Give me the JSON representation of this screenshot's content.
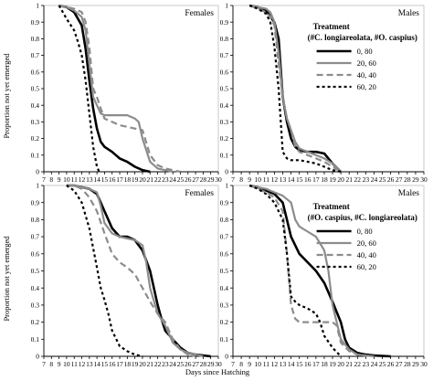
{
  "figure": {
    "ylabel": "Proportion not yet emerged",
    "xlabel": "Days since Hatching"
  },
  "series_styles": {
    "0, 80": {
      "color": "#000000",
      "width": 2.6,
      "dash": ""
    },
    "20, 60": {
      "color": "#8c8c8c",
      "width": 2.2,
      "dash": ""
    },
    "40, 40": {
      "color": "#8c8c8c",
      "width": 2.2,
      "dash": "7,4"
    },
    "60, 20": {
      "color": "#000000",
      "width": 2.2,
      "dash": "3,3"
    }
  },
  "chart_data": [
    {
      "type": "line",
      "panel": "top-left",
      "title": "Females",
      "xlim": [
        7,
        30
      ],
      "ylim": [
        0,
        1
      ],
      "xticks": [
        7,
        8,
        9,
        10,
        11,
        12,
        13,
        14,
        15,
        16,
        17,
        18,
        19,
        20,
        21,
        22,
        23,
        24,
        25,
        26,
        27,
        28,
        29,
        30
      ],
      "yticks": [
        0,
        0.1,
        0.2,
        0.3,
        0.4,
        0.5,
        0.6,
        0.7,
        0.8,
        0.9,
        1
      ],
      "series": [
        {
          "name": "0, 80",
          "x": [
            9,
            10,
            11,
            12,
            12.5,
            13,
            13.5,
            14,
            14.5,
            15,
            16,
            17,
            18,
            19,
            20,
            21
          ],
          "y": [
            1,
            0.99,
            0.96,
            0.88,
            0.74,
            0.55,
            0.38,
            0.26,
            0.18,
            0.15,
            0.12,
            0.08,
            0.06,
            0.03,
            0.01,
            0
          ]
        },
        {
          "name": "20, 60",
          "x": [
            9,
            10,
            11,
            12,
            12.5,
            13,
            13.5,
            14,
            14.5,
            15,
            16,
            17,
            18,
            19,
            19.5,
            20,
            21,
            22,
            23,
            24
          ],
          "y": [
            1,
            0.99,
            0.97,
            0.93,
            0.85,
            0.65,
            0.45,
            0.4,
            0.35,
            0.34,
            0.34,
            0.34,
            0.34,
            0.32,
            0.3,
            0.2,
            0.06,
            0.02,
            0.01,
            0
          ]
        },
        {
          "name": "40, 40",
          "x": [
            9,
            10,
            11,
            12,
            12.5,
            13,
            13.5,
            14,
            14.5,
            15,
            16,
            17,
            18,
            19,
            20,
            21,
            22,
            23,
            24,
            25
          ],
          "y": [
            1,
            0.99,
            0.98,
            0.96,
            0.9,
            0.75,
            0.5,
            0.45,
            0.38,
            0.32,
            0.3,
            0.28,
            0.27,
            0.26,
            0.25,
            0.1,
            0.04,
            0.02,
            0.01,
            0
          ]
        },
        {
          "name": "60, 20",
          "x": [
            9,
            10,
            11,
            11.5,
            12,
            12.5,
            13,
            13.5,
            14,
            14.3
          ],
          "y": [
            1,
            0.92,
            0.85,
            0.78,
            0.7,
            0.55,
            0.35,
            0.15,
            0.03,
            0
          ]
        }
      ]
    },
    {
      "type": "line",
      "panel": "top-right",
      "title": "Males",
      "xlim": [
        7,
        30
      ],
      "ylim": [
        0,
        1
      ],
      "xticks": [
        7,
        8,
        9,
        10,
        11,
        12,
        13,
        14,
        15,
        16,
        17,
        18,
        19,
        20,
        21,
        22,
        23,
        24,
        25,
        26,
        27,
        28,
        29,
        30
      ],
      "yticks": [
        0,
        0.1,
        0.2,
        0.3,
        0.4,
        0.5,
        0.6,
        0.7,
        0.8,
        0.9,
        1
      ],
      "legend": {
        "title": "Treatment",
        "subtitle": "(#C. longiareolata, #O. caspius)",
        "placement": "top-right",
        "entries": [
          "0, 80",
          "20, 60",
          "40, 40",
          "60, 20"
        ]
      },
      "series": [
        {
          "name": "0, 80",
          "x": [
            9,
            10,
            11,
            12,
            12.5,
            13,
            13.5,
            14,
            14.5,
            15,
            16,
            17,
            18,
            19,
            20
          ],
          "y": [
            1,
            0.99,
            0.97,
            0.9,
            0.8,
            0.45,
            0.3,
            0.2,
            0.15,
            0.13,
            0.12,
            0.12,
            0.11,
            0.05,
            0
          ]
        },
        {
          "name": "20, 60",
          "x": [
            9,
            10,
            11,
            11.5,
            12,
            12.5,
            13,
            13.5,
            14,
            14.5,
            15,
            16,
            17,
            18,
            19,
            20
          ],
          "y": [
            1,
            0.99,
            0.98,
            0.96,
            0.9,
            0.72,
            0.45,
            0.32,
            0.25,
            0.18,
            0.14,
            0.12,
            0.1,
            0.08,
            0.05,
            0
          ]
        },
        {
          "name": "40, 40",
          "x": [
            9,
            10,
            11,
            11.5,
            12,
            12.5,
            13,
            13.5,
            14,
            14.5,
            15,
            16,
            17,
            18,
            19,
            20
          ],
          "y": [
            1,
            0.98,
            0.96,
            0.93,
            0.88,
            0.65,
            0.45,
            0.32,
            0.25,
            0.15,
            0.12,
            0.1,
            0.08,
            0.06,
            0.03,
            0
          ]
        },
        {
          "name": "60, 20",
          "x": [
            9,
            10,
            11,
            11.5,
            12,
            12.5,
            13,
            13.5,
            14,
            14.5,
            15,
            16,
            17,
            18,
            19,
            20
          ],
          "y": [
            1,
            0.98,
            0.95,
            0.9,
            0.75,
            0.5,
            0.12,
            0.08,
            0.07,
            0.07,
            0.07,
            0.06,
            0.05,
            0.03,
            0.01,
            0
          ]
        }
      ]
    },
    {
      "type": "line",
      "panel": "bottom-left",
      "title": "Females",
      "xlim": [
        7,
        30
      ],
      "ylim": [
        0,
        1
      ],
      "xticks": [
        7,
        8,
        9,
        10,
        11,
        12,
        13,
        14,
        15,
        16,
        17,
        18,
        19,
        20,
        21,
        22,
        23,
        24,
        25,
        26,
        27,
        28,
        29,
        30
      ],
      "yticks": [
        0,
        0.1,
        0.2,
        0.3,
        0.4,
        0.5,
        0.6,
        0.7,
        0.8,
        0.9,
        1
      ],
      "series": [
        {
          "name": "0, 80",
          "x": [
            10,
            11,
            12,
            13,
            14,
            15,
            16,
            17,
            18,
            19,
            20,
            21,
            22,
            22.5,
            23,
            24,
            25,
            26,
            27,
            28,
            29
          ],
          "y": [
            1,
            1,
            0.99,
            0.98,
            0.95,
            0.85,
            0.75,
            0.7,
            0.7,
            0.68,
            0.62,
            0.5,
            0.3,
            0.22,
            0.15,
            0.1,
            0.05,
            0.02,
            0.01,
            0.005,
            0
          ]
        },
        {
          "name": "20, 60",
          "x": [
            10,
            11,
            12,
            13,
            14,
            14.5,
            15,
            16,
            17,
            18,
            19,
            20,
            20.5,
            21,
            22,
            23,
            24,
            25,
            26,
            27,
            28
          ],
          "y": [
            1,
            1,
            0.99,
            0.98,
            0.96,
            0.88,
            0.78,
            0.72,
            0.7,
            0.69,
            0.68,
            0.65,
            0.55,
            0.4,
            0.25,
            0.18,
            0.08,
            0.04,
            0.02,
            0.01,
            0
          ]
        },
        {
          "name": "40, 40",
          "x": [
            10,
            11,
            12,
            13,
            14,
            15,
            16,
            17,
            18,
            19,
            20,
            21,
            22,
            23,
            24,
            25,
            26,
            27
          ],
          "y": [
            1,
            1,
            0.98,
            0.93,
            0.85,
            0.72,
            0.6,
            0.55,
            0.52,
            0.48,
            0.4,
            0.32,
            0.25,
            0.2,
            0.1,
            0.04,
            0.01,
            0
          ]
        },
        {
          "name": "60, 20",
          "x": [
            10,
            11,
            12,
            13,
            14,
            14.5,
            15,
            15.5,
            16,
            17,
            18,
            19,
            20
          ],
          "y": [
            1,
            0.97,
            0.9,
            0.75,
            0.52,
            0.4,
            0.33,
            0.25,
            0.15,
            0.06,
            0.03,
            0.01,
            0
          ]
        }
      ]
    },
    {
      "type": "line",
      "panel": "bottom-right",
      "title": "Males",
      "xlim": [
        7,
        30
      ],
      "ylim": [
        0,
        1
      ],
      "xticks": [
        7,
        8,
        9,
        10,
        11,
        12,
        13,
        14,
        15,
        16,
        17,
        18,
        19,
        20,
        21,
        22,
        23,
        24,
        25,
        26,
        27,
        28,
        29,
        30
      ],
      "yticks": [
        0,
        0.1,
        0.2,
        0.3,
        0.4,
        0.5,
        0.6,
        0.7,
        0.8,
        0.9,
        1
      ],
      "legend": {
        "title": "Treatment",
        "subtitle": "(#O. caspius, #C. longiareolata)",
        "placement": "top-right",
        "entries": [
          "0, 80",
          "20, 60",
          "40, 40",
          "60, 20"
        ]
      },
      "series": [
        {
          "name": "0, 80",
          "x": [
            9,
            10,
            11,
            12,
            13,
            13.5,
            14,
            15,
            16,
            17,
            18,
            19,
            20,
            20.5,
            21,
            22,
            23,
            24,
            25,
            26
          ],
          "y": [
            1,
            0.99,
            0.97,
            0.95,
            0.9,
            0.8,
            0.7,
            0.6,
            0.55,
            0.5,
            0.43,
            0.32,
            0.2,
            0.1,
            0.05,
            0.02,
            0.01,
            0.005,
            0.002,
            0
          ]
        },
        {
          "name": "20, 60",
          "x": [
            9,
            10,
            11,
            12,
            13,
            14,
            14.5,
            15,
            16,
            17,
            18,
            18.5,
            19,
            19.5,
            20,
            21,
            22,
            23,
            24
          ],
          "y": [
            1,
            0.99,
            0.98,
            0.96,
            0.94,
            0.9,
            0.8,
            0.76,
            0.73,
            0.7,
            0.62,
            0.5,
            0.3,
            0.2,
            0.1,
            0.04,
            0.01,
            0.005,
            0
          ]
        },
        {
          "name": "40, 40",
          "x": [
            9,
            10,
            11,
            12,
            13,
            13.5,
            14,
            14.5,
            15,
            16,
            17,
            18,
            19,
            19.5,
            20,
            21,
            22,
            23
          ],
          "y": [
            1,
            0.98,
            0.96,
            0.93,
            0.85,
            0.6,
            0.3,
            0.22,
            0.2,
            0.2,
            0.2,
            0.2,
            0.2,
            0.18,
            0.08,
            0.03,
            0.01,
            0
          ]
        },
        {
          "name": "60, 20",
          "x": [
            9,
            10,
            11,
            12,
            13,
            13.5,
            14,
            14.5,
            15,
            16,
            17,
            17.5,
            18,
            19,
            20
          ],
          "y": [
            1,
            0.98,
            0.95,
            0.9,
            0.8,
            0.6,
            0.35,
            0.32,
            0.3,
            0.28,
            0.25,
            0.2,
            0.12,
            0.05,
            0
          ]
        }
      ]
    }
  ]
}
